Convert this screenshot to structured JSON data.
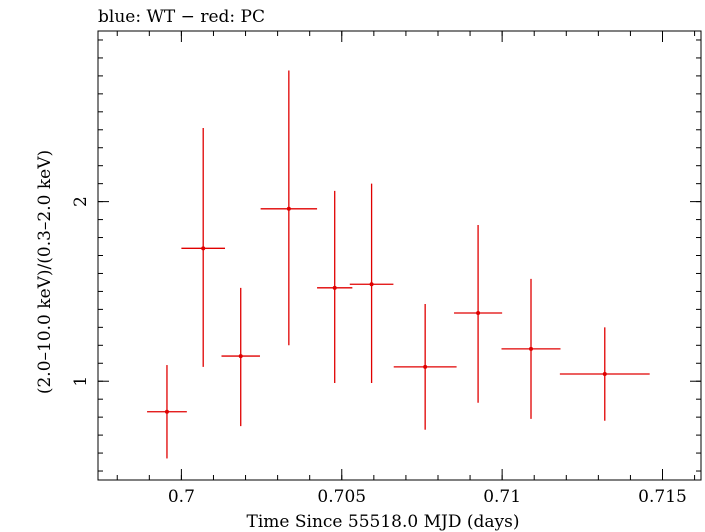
{
  "chart_data": {
    "type": "scatter",
    "title": "blue: WT − red: PC",
    "xlabel": "Time Since 55518.0 MJD (days)",
    "ylabel": "(2.0–10.0 keV)/(0.3–2.0 keV)",
    "xlim": [
      0.6974,
      0.7162
    ],
    "ylim": [
      0.45,
      2.95
    ],
    "x_ticks": [
      {
        "value": 0.7,
        "label": "0.7"
      },
      {
        "value": 0.705,
        "label": "0.705"
      },
      {
        "value": 0.71,
        "label": "0.71"
      },
      {
        "value": 0.715,
        "label": "0.715"
      }
    ],
    "y_ticks": [
      {
        "value": 1,
        "label": "1"
      },
      {
        "value": 2,
        "label": "2"
      }
    ],
    "grid": false,
    "series": [
      {
        "color": "#e00000",
        "points": [
          {
            "x": 0.69955,
            "xerr": 0.00062,
            "y": 0.83,
            "ylo": 0.57,
            "yhi": 1.09
          },
          {
            "x": 0.70068,
            "xerr": 0.00068,
            "y": 1.74,
            "ylo": 1.08,
            "yhi": 2.41
          },
          {
            "x": 0.70185,
            "xerr": 0.0006,
            "y": 1.14,
            "ylo": 0.75,
            "yhi": 1.52
          },
          {
            "x": 0.70335,
            "xerr": 0.00088,
            "y": 1.96,
            "ylo": 1.2,
            "yhi": 2.73
          },
          {
            "x": 0.70478,
            "xerr": 0.00055,
            "y": 1.52,
            "ylo": 0.99,
            "yhi": 2.06
          },
          {
            "x": 0.70593,
            "xerr": 0.00068,
            "y": 1.54,
            "ylo": 0.99,
            "yhi": 2.1
          },
          {
            "x": 0.7076,
            "xerr": 0.00098,
            "y": 1.08,
            "ylo": 0.73,
            "yhi": 1.43
          },
          {
            "x": 0.70925,
            "xerr": 0.00075,
            "y": 1.38,
            "ylo": 0.88,
            "yhi": 1.87
          },
          {
            "x": 0.7109,
            "xerr": 0.00092,
            "y": 1.18,
            "ylo": 0.79,
            "yhi": 1.57
          },
          {
            "x": 0.7132,
            "xerr": 0.0014,
            "y": 1.04,
            "ylo": 0.78,
            "yhi": 1.3
          }
        ]
      }
    ]
  }
}
